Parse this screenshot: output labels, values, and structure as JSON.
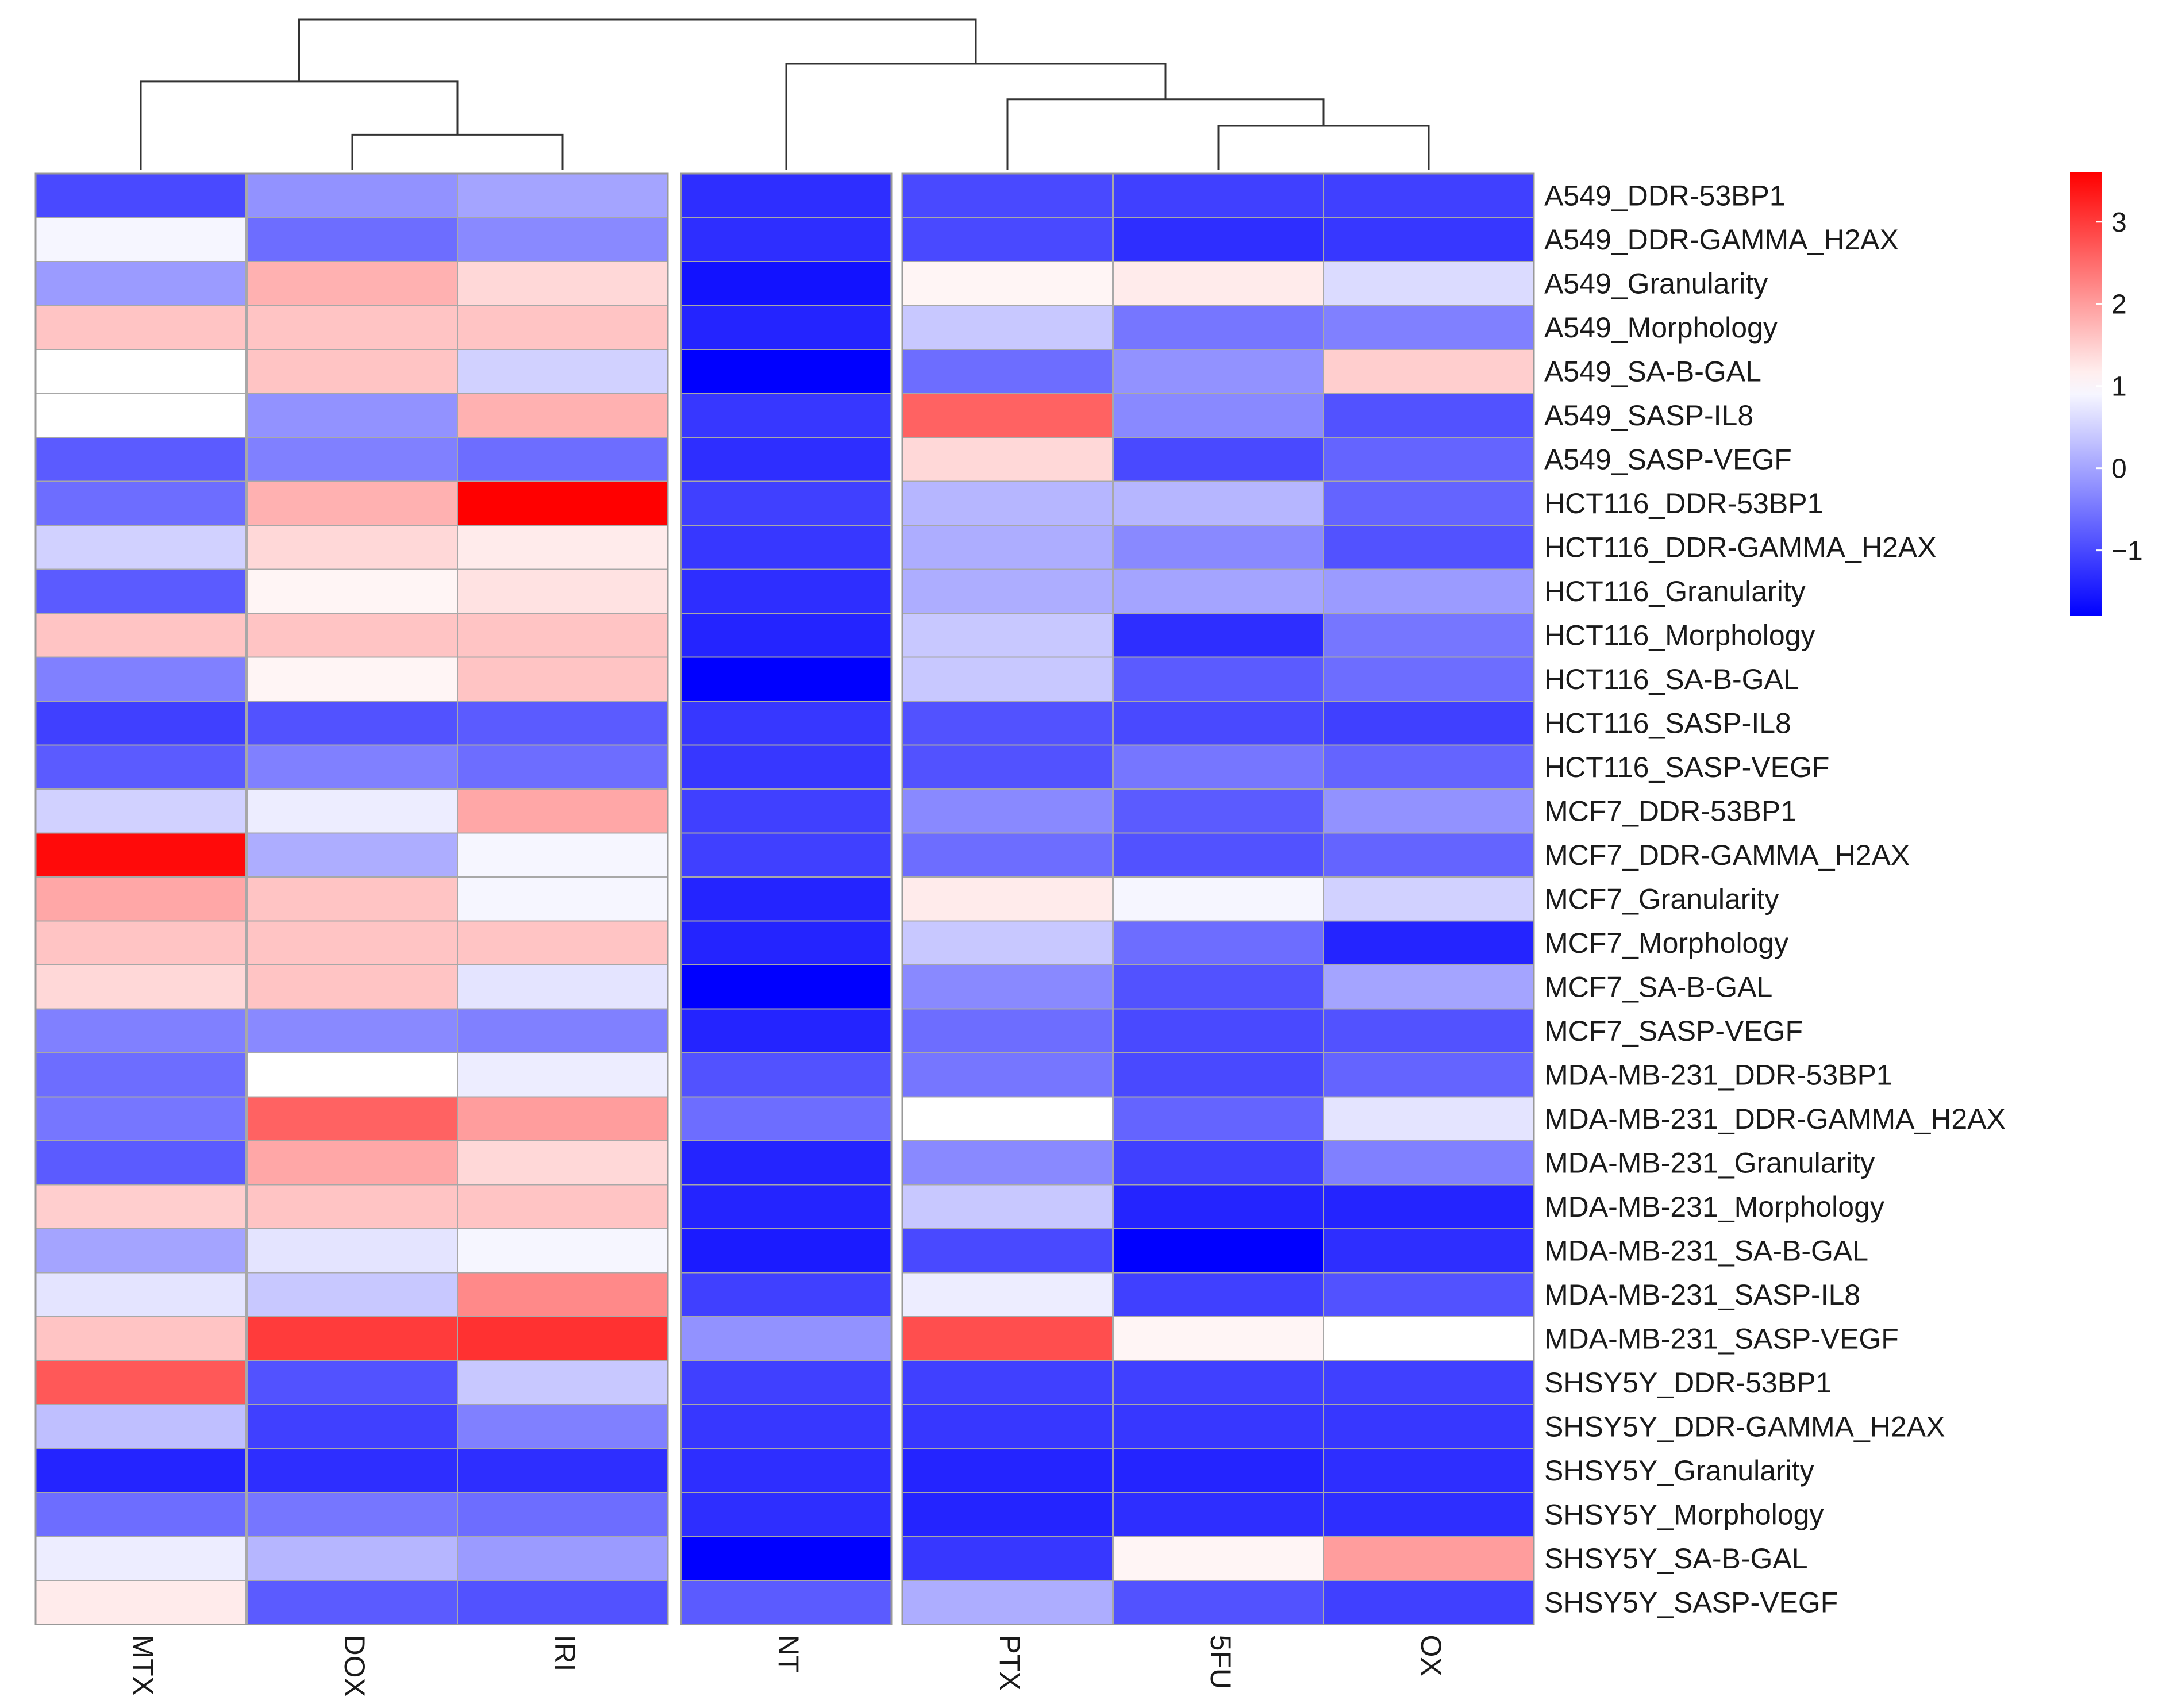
{
  "chart_data": {
    "type": "heatmap",
    "columns": [
      "MTX",
      "DOX",
      "IRI",
      "NT",
      "PTX",
      "5FU",
      "OX"
    ],
    "rows": [
      "A549_DDR-53BP1",
      "A549_DDR-GAMMA_H2AX",
      "A549_Granularity",
      "A549_Morphology",
      "A549_SA-B-GAL",
      "A549_SASP-IL8",
      "A549_SASP-VEGF",
      "HCT116_DDR-53BP1",
      "HCT116_DDR-GAMMA_H2AX",
      "HCT116_Granularity",
      "HCT116_Morphology",
      "HCT116_SA-B-GAL",
      "HCT116_SASP-IL8",
      "HCT116_SASP-VEGF",
      "MCF7_DDR-53BP1",
      "MCF7_DDR-GAMMA_H2AX",
      "MCF7_Granularity",
      "MCF7_Morphology",
      "MCF7_SA-B-GAL",
      "MCF7_SASP-VEGF",
      "MDA-MB-231_DDR-53BP1",
      "MDA-MB-231_DDR-GAMMA_H2AX",
      "MDA-MB-231_Granularity",
      "MDA-MB-231_Morphology",
      "MDA-MB-231_SA-B-GAL",
      "MDA-MB-231_SASP-IL8",
      "MDA-MB-231_SASP-VEGF",
      "SHSY5Y_DDR-53BP1",
      "SHSY5Y_DDR-GAMMA_H2AX",
      "SHSY5Y_Granularity",
      "SHSY5Y_Morphology",
      "SHSY5Y_SA-B-GAL",
      "SHSY5Y_SASP-VEGF"
    ],
    "values": [
      [
        -1.0,
        -0.2,
        0.0,
        -1.3,
        -1.0,
        -1.1,
        -1.1
      ],
      [
        0.9,
        -0.6,
        -0.3,
        -1.3,
        -1.0,
        -1.3,
        -1.2
      ],
      [
        -0.1,
        1.8,
        1.4,
        -1.6,
        1.1,
        1.2,
        0.6
      ],
      [
        1.6,
        1.6,
        1.6,
        -1.4,
        0.4,
        -0.5,
        -0.4
      ],
      [
        1.0,
        1.6,
        0.5,
        -1.8,
        -0.6,
        -0.2,
        1.5
      ],
      [
        1.0,
        -0.2,
        1.8,
        -1.2,
        2.6,
        -0.3,
        -0.9
      ],
      [
        -0.8,
        -0.4,
        -0.6,
        -1.3,
        1.4,
        -1.0,
        -0.7
      ],
      [
        -0.6,
        1.8,
        3.6,
        -1.1,
        0.2,
        0.2,
        -0.7
      ],
      [
        0.5,
        1.4,
        1.2,
        -1.2,
        0.1,
        -0.3,
        -0.9
      ],
      [
        -0.8,
        1.1,
        1.3,
        -1.3,
        0.1,
        0.0,
        -0.1
      ],
      [
        1.6,
        1.6,
        1.6,
        -1.4,
        0.4,
        -1.3,
        -0.5
      ],
      [
        -0.4,
        1.1,
        1.6,
        -1.8,
        0.4,
        -0.8,
        -0.6
      ],
      [
        -1.1,
        -0.9,
        -0.8,
        -1.2,
        -0.9,
        -1.0,
        -1.1
      ],
      [
        -0.8,
        -0.4,
        -0.6,
        -1.2,
        -0.9,
        -0.5,
        -0.7
      ],
      [
        0.5,
        0.8,
        1.9,
        -1.1,
        -0.3,
        -0.8,
        -0.2
      ],
      [
        3.5,
        0.1,
        0.9,
        -1.1,
        -0.6,
        -0.9,
        -0.7
      ],
      [
        1.9,
        1.6,
        0.9,
        -1.4,
        1.2,
        0.9,
        0.5
      ],
      [
        1.6,
        1.6,
        1.6,
        -1.4,
        0.4,
        -0.6,
        -1.4
      ],
      [
        1.4,
        1.6,
        0.7,
        -1.8,
        -0.3,
        -0.9,
        0.0
      ],
      [
        -0.4,
        -0.3,
        -0.4,
        -1.4,
        -0.6,
        -1.0,
        -0.9
      ],
      [
        -0.6,
        1.0,
        0.8,
        -0.9,
        -0.5,
        -1.0,
        -0.7
      ],
      [
        -0.5,
        2.6,
        2.0,
        -0.6,
        1.0,
        -0.7,
        0.7
      ],
      [
        -0.8,
        1.9,
        1.4,
        -1.4,
        -0.3,
        -1.1,
        -0.4
      ],
      [
        1.5,
        1.6,
        1.6,
        -1.4,
        0.4,
        -1.4,
        -1.4
      ],
      [
        0.0,
        0.7,
        0.9,
        -1.5,
        -1.0,
        -1.8,
        -1.3
      ],
      [
        0.7,
        0.4,
        2.2,
        -1.1,
        0.8,
        -1.1,
        -0.9
      ],
      [
        1.6,
        3.0,
        3.1,
        -0.2,
        2.8,
        1.1,
        1.0
      ],
      [
        2.7,
        -0.9,
        0.4,
        -1.1,
        -1.1,
        -1.1,
        -1.1
      ],
      [
        0.3,
        -1.1,
        -0.4,
        -1.2,
        -1.2,
        -1.2,
        -1.2
      ],
      [
        -1.4,
        -1.3,
        -1.3,
        -1.3,
        -1.4,
        -1.4,
        -1.3
      ],
      [
        -0.6,
        -0.5,
        -0.6,
        -1.3,
        -1.4,
        -1.3,
        -1.3
      ],
      [
        0.8,
        0.2,
        -0.1,
        -1.8,
        -1.2,
        1.1,
        2.0
      ],
      [
        1.2,
        -0.8,
        -0.9,
        -0.8,
        0.1,
        -0.9,
        -1.1
      ]
    ],
    "column_gaps_after": [
      "IRI",
      "NT"
    ],
    "color_scale": {
      "min": -1.8,
      "mid": 1.0,
      "max": 3.6,
      "low": "#0000ff",
      "mid_color": "#ffffff",
      "high": "#ff0000"
    },
    "legend": {
      "ticks": [
        -1,
        0,
        1,
        2,
        3
      ],
      "tick_labels": [
        "−1",
        "0",
        "1",
        "2",
        "3"
      ],
      "position": "right"
    },
    "dendrogram": {
      "leaf_order": [
        "MTX",
        "DOX",
        "IRI",
        "NT",
        "PTX",
        "5FU",
        "OX"
      ],
      "merges": [
        [
          "DOX",
          "IRI",
          0.4
        ],
        [
          "5FU",
          "OX",
          0.5
        ],
        [
          "PTX",
          "5FU+OX",
          0.8
        ],
        [
          "MTX",
          "DOX+IRI",
          1.0
        ],
        [
          "NT",
          "PTX+5FU+OX",
          1.2
        ],
        [
          "ALL_LEFT",
          "ALL_RIGHT",
          1.7
        ]
      ]
    },
    "title": "",
    "xlabel": "",
    "ylabel": ""
  }
}
